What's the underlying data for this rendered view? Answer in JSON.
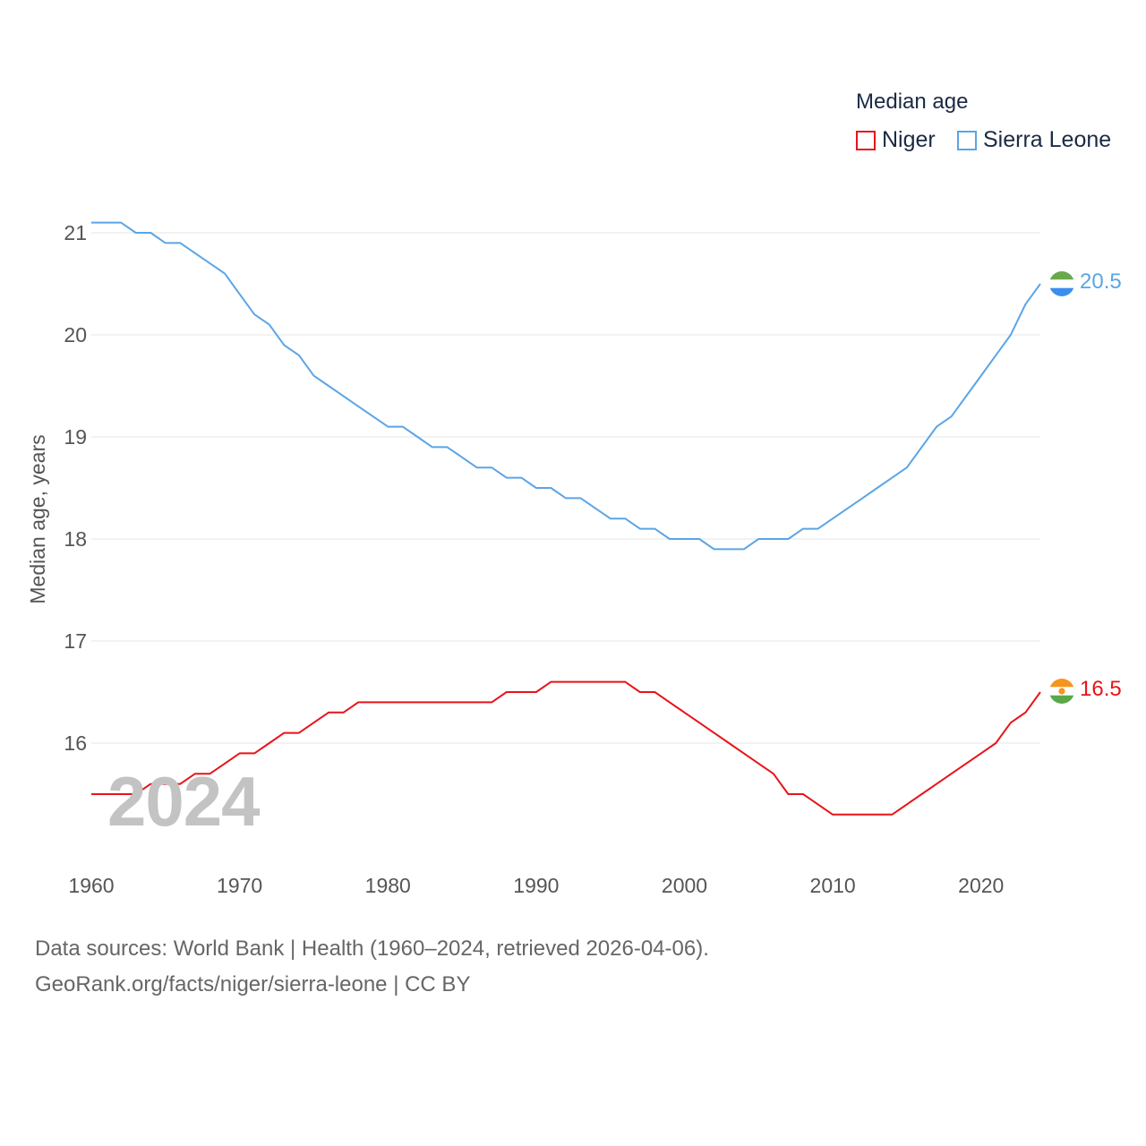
{
  "legend": {
    "title": "Median age",
    "items": [
      {
        "name": "Niger",
        "color": "#e8131a"
      },
      {
        "name": "Sierra Leone",
        "color": "#5aa5e6"
      }
    ]
  },
  "watermark_year": "2024",
  "source": {
    "line1": "Data sources: World Bank | Health (1960–2024, retrieved 2026-04-06).",
    "line2": "GeoRank.org/facts/niger/sierra-leone | CC BY"
  },
  "end_labels": {
    "niger": "16.5",
    "sierra_leone": "20.5"
  },
  "flags": {
    "niger": "niger-flag-icon",
    "sierra_leone": "sierra-leone-flag-icon"
  },
  "chart_data": {
    "type": "line",
    "title": "Median age",
    "xlabel": "",
    "ylabel": "Median age, years",
    "xlim": [
      1960,
      2024
    ],
    "ylim": [
      15,
      21.2
    ],
    "x_ticks": [
      1960,
      1970,
      1980,
      1990,
      2000,
      2010,
      2020
    ],
    "y_ticks": [
      16,
      17,
      18,
      19,
      20,
      21
    ],
    "grid": true,
    "x": [
      1960,
      1961,
      1962,
      1963,
      1964,
      1965,
      1966,
      1967,
      1968,
      1969,
      1970,
      1971,
      1972,
      1973,
      1974,
      1975,
      1976,
      1977,
      1978,
      1979,
      1980,
      1981,
      1982,
      1983,
      1984,
      1985,
      1986,
      1987,
      1988,
      1989,
      1990,
      1991,
      1992,
      1993,
      1994,
      1995,
      1996,
      1997,
      1998,
      1999,
      2000,
      2001,
      2002,
      2003,
      2004,
      2005,
      2006,
      2007,
      2008,
      2009,
      2010,
      2011,
      2012,
      2013,
      2014,
      2015,
      2016,
      2017,
      2018,
      2019,
      2020,
      2021,
      2022,
      2023,
      2024
    ],
    "series": [
      {
        "name": "Niger",
        "color": "#e8131a",
        "values": [
          15.5,
          15.5,
          15.5,
          15.5,
          15.6,
          15.6,
          15.6,
          15.7,
          15.7,
          15.8,
          15.9,
          15.9,
          16.0,
          16.1,
          16.1,
          16.2,
          16.3,
          16.3,
          16.4,
          16.4,
          16.4,
          16.4,
          16.4,
          16.4,
          16.4,
          16.4,
          16.4,
          16.4,
          16.5,
          16.5,
          16.5,
          16.6,
          16.6,
          16.6,
          16.6,
          16.6,
          16.6,
          16.5,
          16.5,
          16.4,
          16.3,
          16.2,
          16.1,
          16.0,
          15.9,
          15.8,
          15.7,
          15.5,
          15.5,
          15.4,
          15.3,
          15.3,
          15.3,
          15.3,
          15.3,
          15.4,
          15.5,
          15.6,
          15.7,
          15.8,
          15.9,
          16.0,
          16.2,
          16.3,
          16.5
        ]
      },
      {
        "name": "Sierra Leone",
        "color": "#5aa5e6",
        "values": [
          21.1,
          21.1,
          21.1,
          21.0,
          21.0,
          20.9,
          20.9,
          20.8,
          20.7,
          20.6,
          20.4,
          20.2,
          20.1,
          19.9,
          19.8,
          19.6,
          19.5,
          19.4,
          19.3,
          19.2,
          19.1,
          19.1,
          19.0,
          18.9,
          18.9,
          18.8,
          18.7,
          18.7,
          18.6,
          18.6,
          18.5,
          18.5,
          18.4,
          18.4,
          18.3,
          18.2,
          18.2,
          18.1,
          18.1,
          18.0,
          18.0,
          18.0,
          17.9,
          17.9,
          17.9,
          18.0,
          18.0,
          18.0,
          18.1,
          18.1,
          18.2,
          18.3,
          18.4,
          18.5,
          18.6,
          18.7,
          18.9,
          19.1,
          19.2,
          19.4,
          19.6,
          19.8,
          20.0,
          20.3,
          20.5
        ]
      }
    ]
  }
}
